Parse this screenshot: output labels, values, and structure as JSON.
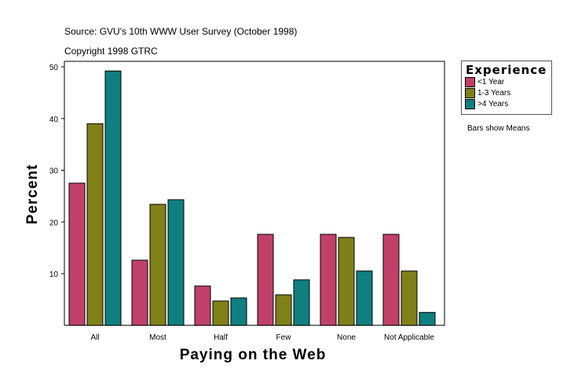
{
  "header": {
    "source": "Source: GVU's 10th WWW User Survey (October 1998)",
    "copyright": "Copyright 1998 GTRC"
  },
  "note": "Bars show Means",
  "chart_data": {
    "type": "bar",
    "xlabel": "Paying on the Web",
    "ylabel": "Percent",
    "ylim": [
      0,
      50
    ],
    "yticks": [
      10,
      20,
      30,
      40,
      50
    ],
    "grid": false,
    "legend_title": "Experience",
    "legend_position": "right",
    "categories": [
      "All",
      "Most",
      "Half",
      "Few",
      "None",
      "Not Applicable"
    ],
    "series": [
      {
        "name": "<1 Year",
        "color": "#c0406a",
        "values": [
          27.5,
          12.6,
          7.6,
          17.6,
          17.6,
          17.6
        ]
      },
      {
        "name": "1-3 Years",
        "color": "#808018",
        "values": [
          39.0,
          23.4,
          4.7,
          5.9,
          17.0,
          10.5
        ]
      },
      {
        "name": ">4 Years",
        "color": "#0f7f80",
        "values": [
          49.2,
          24.3,
          5.3,
          8.8,
          10.5,
          2.5
        ]
      }
    ]
  }
}
